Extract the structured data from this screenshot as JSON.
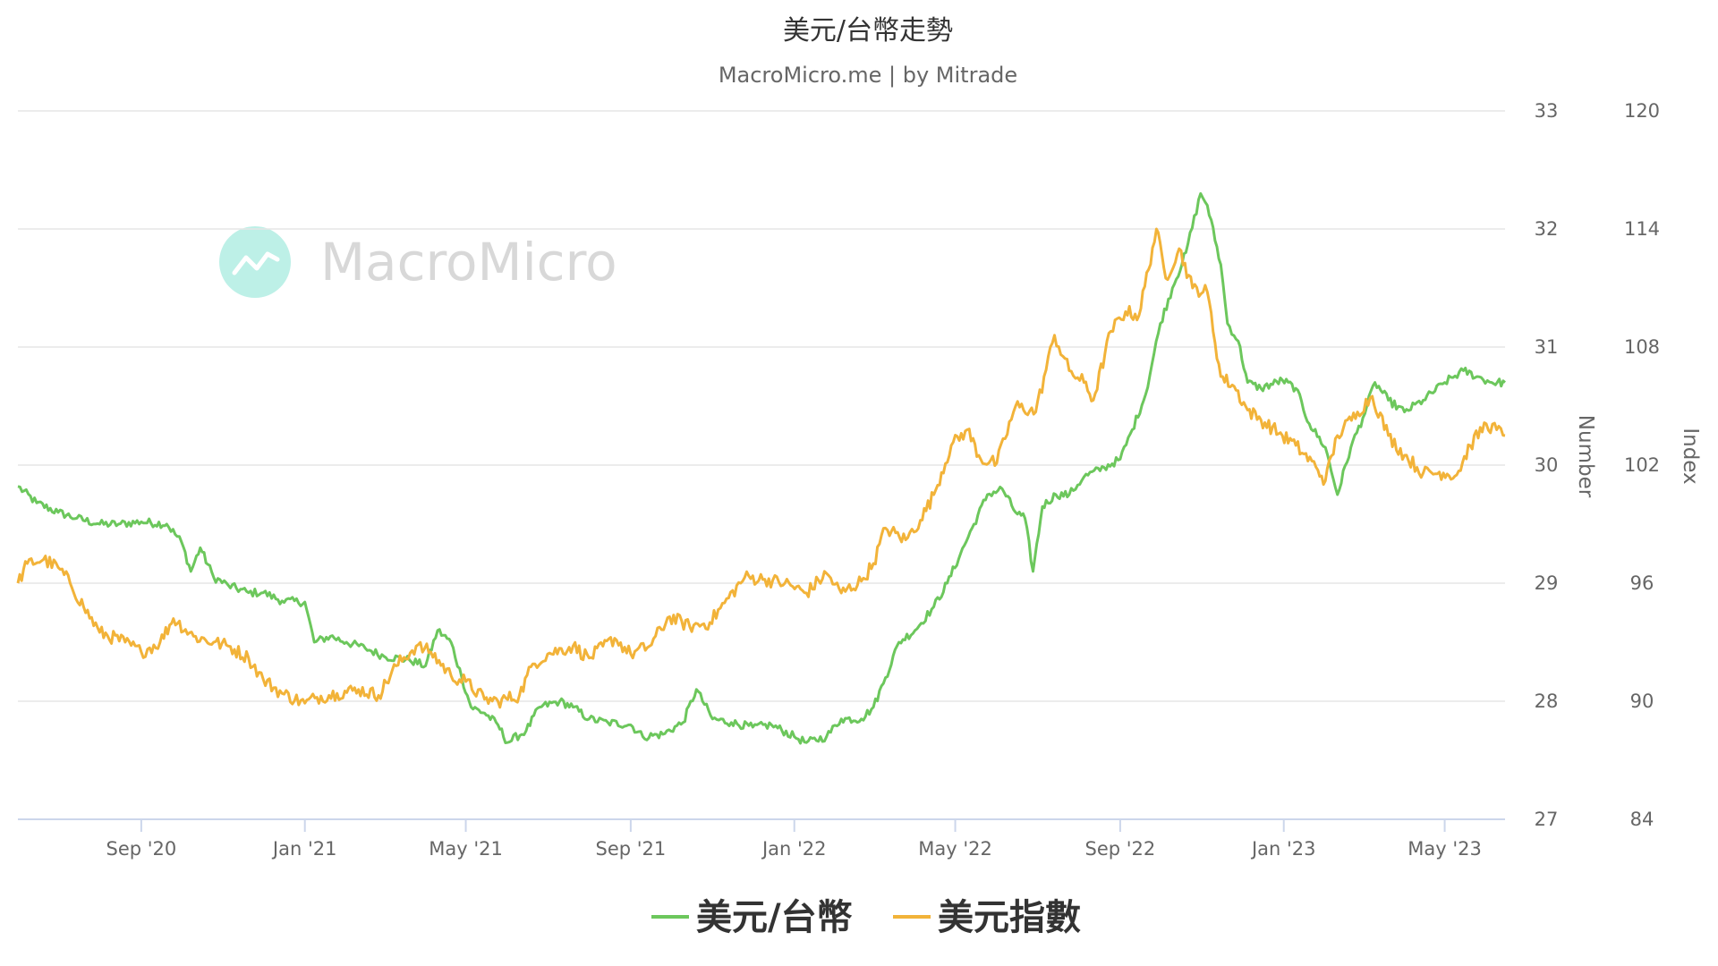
{
  "chart_data": {
    "type": "line",
    "title": "美元/台幣走勢",
    "subtitle": "MacroMicro.me | by Mitrade",
    "watermark": "MacroMicro",
    "x_range": [
      "2020-06-01",
      "2023-06-15"
    ],
    "x_ticks": [
      {
        "date": "2020-09-01",
        "label": "Sep '20"
      },
      {
        "date": "2021-01-01",
        "label": "Jan '21"
      },
      {
        "date": "2021-05-01",
        "label": "May '21"
      },
      {
        "date": "2021-09-01",
        "label": "Sep '21"
      },
      {
        "date": "2022-01-01",
        "label": "Jan '22"
      },
      {
        "date": "2022-05-01",
        "label": "May '22"
      },
      {
        "date": "2022-09-01",
        "label": "Sep '22"
      },
      {
        "date": "2023-01-01",
        "label": "Jan '23"
      },
      {
        "date": "2023-05-01",
        "label": "May '23"
      }
    ],
    "y_left": {
      "title": "Number",
      "min": 27,
      "max": 33,
      "ticks": [
        27,
        28,
        29,
        30,
        31,
        32,
        33
      ]
    },
    "y_right": {
      "title": "Index",
      "min": 84,
      "max": 120,
      "ticks": [
        84,
        90,
        96,
        102,
        108,
        114,
        120
      ]
    },
    "grid": true,
    "legend_position": "bottom",
    "series": [
      {
        "name": "美元/台幣",
        "color": "#6cc75c",
        "axis": "left",
        "points": [
          [
            "2020-06-01",
            29.82
          ],
          [
            "2020-06-15",
            29.68
          ],
          [
            "2020-07-01",
            29.6
          ],
          [
            "2020-07-15",
            29.55
          ],
          [
            "2020-08-01",
            29.5
          ],
          [
            "2020-08-15",
            29.5
          ],
          [
            "2020-09-01",
            29.52
          ],
          [
            "2020-09-20",
            29.5
          ],
          [
            "2020-10-01",
            29.35
          ],
          [
            "2020-10-08",
            29.1
          ],
          [
            "2020-10-15",
            29.3
          ],
          [
            "2020-10-25",
            29.05
          ],
          [
            "2020-11-05",
            28.98
          ],
          [
            "2020-11-20",
            28.92
          ],
          [
            "2020-12-01",
            28.92
          ],
          [
            "2020-12-15",
            28.85
          ],
          [
            "2021-01-01",
            28.84
          ],
          [
            "2021-01-08",
            28.5
          ],
          [
            "2021-01-20",
            28.55
          ],
          [
            "2021-02-01",
            28.5
          ],
          [
            "2021-02-15",
            28.45
          ],
          [
            "2021-03-01",
            28.38
          ],
          [
            "2021-03-20",
            28.35
          ],
          [
            "2021-04-01",
            28.3
          ],
          [
            "2021-04-10",
            28.6
          ],
          [
            "2021-04-20",
            28.5
          ],
          [
            "2021-04-28",
            28.2
          ],
          [
            "2021-05-05",
            27.95
          ],
          [
            "2021-05-15",
            27.9
          ],
          [
            "2021-05-25",
            27.8
          ],
          [
            "2021-06-01",
            27.65
          ],
          [
            "2021-06-15",
            27.75
          ],
          [
            "2021-06-25",
            27.95
          ],
          [
            "2021-07-10",
            28.0
          ],
          [
            "2021-07-20",
            27.95
          ],
          [
            "2021-08-01",
            27.85
          ],
          [
            "2021-08-15",
            27.82
          ],
          [
            "2021-09-01",
            27.8
          ],
          [
            "2021-09-10",
            27.7
          ],
          [
            "2021-09-25",
            27.72
          ],
          [
            "2021-10-10",
            27.82
          ],
          [
            "2021-10-20",
            28.1
          ],
          [
            "2021-11-01",
            27.85
          ],
          [
            "2021-11-15",
            27.82
          ],
          [
            "2021-12-01",
            27.78
          ],
          [
            "2021-12-15",
            27.8
          ],
          [
            "2022-01-01",
            27.7
          ],
          [
            "2022-01-10",
            27.65
          ],
          [
            "2022-01-25",
            27.7
          ],
          [
            "2022-02-05",
            27.85
          ],
          [
            "2022-02-20",
            27.85
          ],
          [
            "2022-03-01",
            27.95
          ],
          [
            "2022-03-10",
            28.2
          ],
          [
            "2022-03-20",
            28.5
          ],
          [
            "2022-04-01",
            28.6
          ],
          [
            "2022-04-15",
            28.8
          ],
          [
            "2022-04-25",
            29.0
          ],
          [
            "2022-05-05",
            29.25
          ],
          [
            "2022-05-15",
            29.5
          ],
          [
            "2022-05-25",
            29.75
          ],
          [
            "2022-06-05",
            29.8
          ],
          [
            "2022-06-15",
            29.6
          ],
          [
            "2022-06-22",
            29.55
          ],
          [
            "2022-06-28",
            29.1
          ],
          [
            "2022-07-05",
            29.65
          ],
          [
            "2022-07-15",
            29.75
          ],
          [
            "2022-07-25",
            29.75
          ],
          [
            "2022-08-05",
            29.9
          ],
          [
            "2022-08-20",
            29.98
          ],
          [
            "2022-09-01",
            30.05
          ],
          [
            "2022-09-10",
            30.3
          ],
          [
            "2022-09-20",
            30.6
          ],
          [
            "2022-10-01",
            31.2
          ],
          [
            "2022-10-10",
            31.5
          ],
          [
            "2022-10-20",
            31.8
          ],
          [
            "2022-10-31",
            32.3
          ],
          [
            "2022-11-05",
            32.2
          ],
          [
            "2022-11-15",
            31.7
          ],
          [
            "2022-11-20",
            31.2
          ],
          [
            "2022-11-28",
            31.05
          ],
          [
            "2022-12-05",
            30.7
          ],
          [
            "2022-12-15",
            30.65
          ],
          [
            "2022-12-31",
            30.72
          ],
          [
            "2023-01-10",
            30.65
          ],
          [
            "2023-01-20",
            30.35
          ],
          [
            "2023-02-01",
            30.15
          ],
          [
            "2023-02-10",
            29.75
          ],
          [
            "2023-02-20",
            30.15
          ],
          [
            "2023-03-01",
            30.4
          ],
          [
            "2023-03-10",
            30.7
          ],
          [
            "2023-03-20",
            30.55
          ],
          [
            "2023-04-01",
            30.45
          ],
          [
            "2023-04-15",
            30.55
          ],
          [
            "2023-05-01",
            30.7
          ],
          [
            "2023-05-15",
            30.8
          ],
          [
            "2023-05-25",
            30.75
          ],
          [
            "2023-06-05",
            30.7
          ],
          [
            "2023-06-15",
            30.7
          ]
        ]
      },
      {
        "name": "美元指數",
        "color": "#f2b339",
        "axis": "right",
        "points": [
          [
            "2020-06-01",
            96.0
          ],
          [
            "2020-06-08",
            97.0
          ],
          [
            "2020-06-20",
            97.2
          ],
          [
            "2020-07-01",
            96.8
          ],
          [
            "2020-07-10",
            96.0
          ],
          [
            "2020-07-20",
            94.8
          ],
          [
            "2020-08-01",
            93.5
          ],
          [
            "2020-08-20",
            93.0
          ],
          [
            "2020-09-01",
            92.5
          ],
          [
            "2020-09-15",
            93.0
          ],
          [
            "2020-09-25",
            94.2
          ],
          [
            "2020-10-10",
            93.3
          ],
          [
            "2020-10-25",
            93.0
          ],
          [
            "2020-11-05",
            92.8
          ],
          [
            "2020-11-20",
            92.2
          ],
          [
            "2020-12-01",
            91.1
          ],
          [
            "2020-12-15",
            90.4
          ],
          [
            "2021-01-01",
            89.9
          ],
          [
            "2021-01-10",
            90.2
          ],
          [
            "2021-01-25",
            90.4
          ],
          [
            "2021-02-10",
            90.6
          ],
          [
            "2021-02-25",
            90.3
          ],
          [
            "2021-03-10",
            91.8
          ],
          [
            "2021-03-25",
            92.8
          ],
          [
            "2021-04-05",
            92.5
          ],
          [
            "2021-04-20",
            91.3
          ],
          [
            "2021-05-01",
            91.0
          ],
          [
            "2021-05-15",
            90.1
          ],
          [
            "2021-05-25",
            90.0
          ],
          [
            "2021-06-10",
            90.3
          ],
          [
            "2021-06-20",
            91.9
          ],
          [
            "2021-07-01",
            92.4
          ],
          [
            "2021-07-20",
            92.8
          ],
          [
            "2021-08-01",
            92.2
          ],
          [
            "2021-08-20",
            93.2
          ],
          [
            "2021-09-01",
            92.4
          ],
          [
            "2021-09-15",
            92.8
          ],
          [
            "2021-09-30",
            94.3
          ],
          [
            "2021-10-15",
            93.8
          ],
          [
            "2021-10-30",
            94.0
          ],
          [
            "2021-11-10",
            95.0
          ],
          [
            "2021-11-25",
            96.3
          ],
          [
            "2021-12-10",
            96.2
          ],
          [
            "2021-12-25",
            96.0
          ],
          [
            "2022-01-10",
            95.5
          ],
          [
            "2022-01-25",
            96.5
          ],
          [
            "2022-02-05",
            95.5
          ],
          [
            "2022-02-20",
            96.1
          ],
          [
            "2022-03-01",
            97.0
          ],
          [
            "2022-03-10",
            98.8
          ],
          [
            "2022-03-25",
            98.2
          ],
          [
            "2022-04-05",
            99.2
          ],
          [
            "2022-04-15",
            100.5
          ],
          [
            "2022-04-28",
            103.0
          ],
          [
            "2022-05-10",
            103.8
          ],
          [
            "2022-05-20",
            102.3
          ],
          [
            "2022-06-01",
            102.1
          ],
          [
            "2022-06-15",
            105.0
          ],
          [
            "2022-06-30",
            104.7
          ],
          [
            "2022-07-14",
            108.6
          ],
          [
            "2022-07-25",
            106.8
          ],
          [
            "2022-08-05",
            106.2
          ],
          [
            "2022-08-12",
            105.3
          ],
          [
            "2022-08-25",
            108.8
          ],
          [
            "2022-09-05",
            109.8
          ],
          [
            "2022-09-15",
            109.6
          ],
          [
            "2022-09-28",
            114.0
          ],
          [
            "2022-10-05",
            111.5
          ],
          [
            "2022-10-15",
            113.0
          ],
          [
            "2022-10-25",
            111.0
          ],
          [
            "2022-11-05",
            110.8
          ],
          [
            "2022-11-15",
            106.5
          ],
          [
            "2022-11-25",
            106.0
          ],
          [
            "2022-12-05",
            104.8
          ],
          [
            "2022-12-15",
            104.3
          ],
          [
            "2022-12-31",
            103.5
          ],
          [
            "2023-01-10",
            103.0
          ],
          [
            "2023-01-25",
            101.9
          ],
          [
            "2023-02-01",
            101.2
          ],
          [
            "2023-02-10",
            103.5
          ],
          [
            "2023-02-25",
            104.7
          ],
          [
            "2023-03-08",
            105.5
          ],
          [
            "2023-03-20",
            103.5
          ],
          [
            "2023-04-01",
            102.5
          ],
          [
            "2023-04-15",
            101.6
          ],
          [
            "2023-04-30",
            101.6
          ],
          [
            "2023-05-10",
            101.5
          ],
          [
            "2023-05-20",
            103.0
          ],
          [
            "2023-06-01",
            104.1
          ],
          [
            "2023-06-15",
            103.5
          ]
        ]
      }
    ]
  }
}
